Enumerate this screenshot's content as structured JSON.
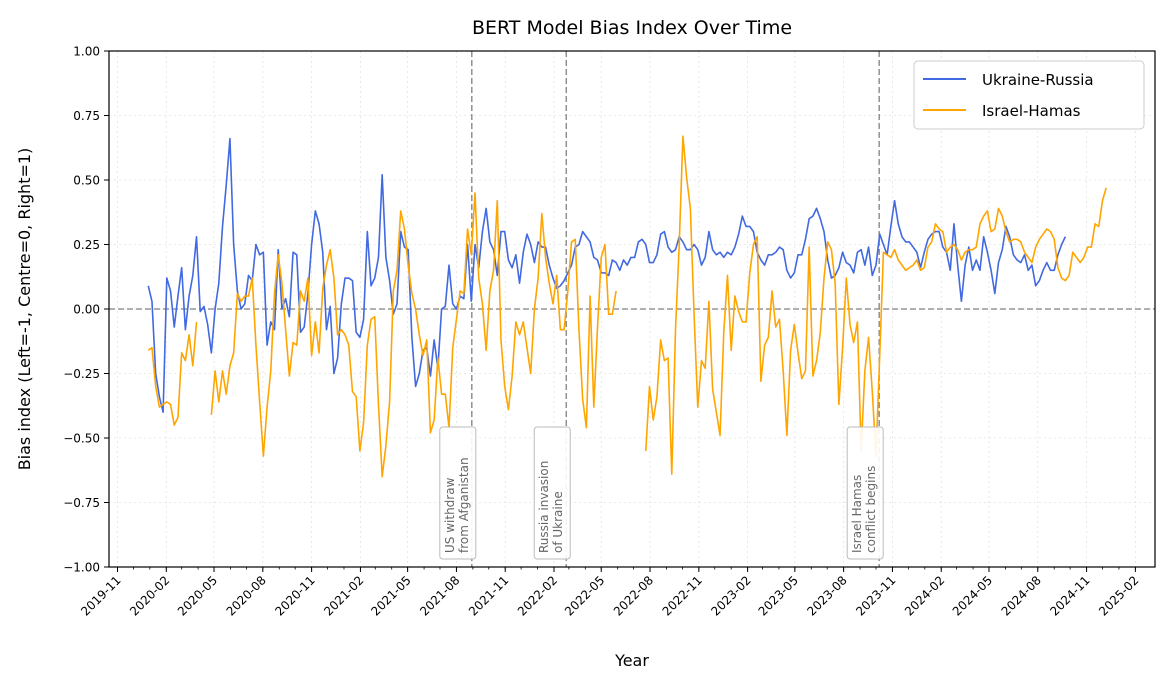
{
  "chart_data": {
    "type": "line",
    "title": "BERT Model Bias Index Over Time",
    "xlabel": "Year",
    "ylabel": "Bias index (Left=-1, Centre=0, Right=1)",
    "ylim": [
      -1.0,
      1.0
    ],
    "xlim": [
      "2019-10-16",
      "2025-03-10"
    ],
    "y_ticks": [
      -1.0,
      -0.75,
      -0.5,
      -0.25,
      0.0,
      0.25,
      0.5,
      0.75,
      1.0
    ],
    "y_tick_labels": [
      "−1.00",
      "−0.75",
      "−0.50",
      "−0.25",
      "0.00",
      "0.25",
      "0.50",
      "0.75",
      "1.00"
    ],
    "x_ticks": [
      "2019-11-01",
      "2020-02-01",
      "2020-05-01",
      "2020-08-01",
      "2020-11-01",
      "2021-02-01",
      "2021-05-01",
      "2021-08-01",
      "2021-11-01",
      "2022-02-01",
      "2022-05-01",
      "2022-08-01",
      "2022-11-01",
      "2023-02-01",
      "2023-05-01",
      "2023-08-01",
      "2023-11-01",
      "2024-02-01",
      "2024-05-01",
      "2024-08-01",
      "2024-11-01",
      "2025-02-01"
    ],
    "x_tick_labels": [
      "2019-11",
      "2020-02",
      "2020-05",
      "2020-08",
      "2020-11",
      "2021-02",
      "2021-05",
      "2021-08",
      "2021-11",
      "2022-02",
      "2022-05",
      "2022-08",
      "2022-11",
      "2023-02",
      "2023-05",
      "2023-08",
      "2023-11",
      "2024-02",
      "2024-05",
      "2024-08",
      "2024-11",
      "2025-02"
    ],
    "grid": true,
    "legend_position": "top-right",
    "reference_line_y": 0.0,
    "events": [
      {
        "date": "2021-08-30",
        "lines": [
          "US withdraw",
          "from Afganistan"
        ]
      },
      {
        "date": "2022-02-24",
        "lines": [
          "Russia invasion",
          "of Ukraine"
        ]
      },
      {
        "date": "2023-10-07",
        "lines": [
          "Israel Hamas",
          "conflict begins"
        ]
      }
    ],
    "series": [
      {
        "name": "Ukraine-Russia",
        "color": "#4169e1",
        "start": "2019-12-29",
        "interval_days": 7,
        "values": [
          0.09,
          0.03,
          -0.25,
          -0.34,
          -0.4,
          0.12,
          0.07,
          -0.07,
          0.05,
          0.16,
          -0.08,
          0.05,
          0.13,
          0.28,
          -0.01,
          0.01,
          -0.06,
          -0.17,
          0.0,
          0.1,
          0.32,
          0.48,
          0.66,
          0.25,
          0.07,
          0.0,
          0.02,
          0.13,
          0.11,
          0.25,
          0.21,
          0.22,
          -0.14,
          -0.05,
          -0.08,
          0.23,
          0.0,
          0.04,
          -0.03,
          0.22,
          0.21,
          -0.09,
          -0.07,
          0.06,
          0.25,
          0.38,
          0.33,
          0.22,
          -0.08,
          0.01,
          -0.25,
          -0.19,
          0.02,
          0.12,
          0.12,
          0.11,
          -0.09,
          -0.11,
          -0.04,
          0.3,
          0.09,
          0.12,
          0.2,
          0.52,
          0.2,
          0.11,
          -0.02,
          0.02,
          0.3,
          0.24,
          0.23,
          -0.11,
          -0.3,
          -0.25,
          -0.16,
          -0.15,
          -0.26,
          -0.12,
          -0.23,
          0.0,
          0.01,
          0.17,
          0.02,
          0.0,
          0.05,
          0.04,
          0.25,
          0.03,
          0.25,
          0.16,
          0.3,
          0.39,
          0.26,
          0.23,
          0.13,
          0.3,
          0.3,
          0.19,
          0.16,
          0.21,
          0.1,
          0.22,
          0.29,
          0.25,
          0.18,
          0.26,
          0.24,
          0.24,
          0.17,
          0.12,
          0.08,
          0.09,
          0.11,
          0.14,
          0.17,
          0.24,
          0.25,
          0.3,
          0.28,
          0.26,
          0.2,
          0.19,
          0.14,
          0.14,
          0.13,
          0.19,
          0.18,
          0.15,
          0.19,
          0.17,
          0.2,
          0.2,
          0.26,
          0.27,
          0.25,
          0.18,
          0.18,
          0.21,
          0.29,
          0.3,
          0.24,
          0.22,
          0.23,
          0.28,
          0.26,
          0.23,
          0.23,
          0.25,
          0.23,
          0.17,
          0.2,
          0.3,
          0.23,
          0.21,
          0.22,
          0.2,
          0.22,
          0.21,
          0.24,
          0.29,
          0.36,
          0.32,
          0.32,
          0.3,
          0.22,
          0.19,
          0.17,
          0.21,
          0.21,
          0.22,
          0.24,
          0.23,
          0.15,
          0.12,
          0.14,
          0.21,
          0.21,
          0.27,
          0.35,
          0.36,
          0.39,
          0.35,
          0.3,
          0.19,
          0.12,
          0.13,
          0.16,
          0.22,
          0.18,
          0.17,
          0.14,
          0.22,
          0.23,
          0.17,
          0.24,
          0.13,
          0.17,
          0.29,
          0.25,
          0.21,
          0.32,
          0.42,
          0.33,
          0.28,
          0.26,
          0.26,
          0.24,
          0.22,
          0.16,
          0.22,
          0.27,
          0.29,
          0.3,
          0.3,
          0.24,
          0.22,
          0.15,
          0.33,
          0.17,
          0.03,
          0.17,
          0.24,
          0.15,
          0.19,
          0.15,
          0.28,
          0.22,
          0.15,
          0.06,
          0.18,
          0.23,
          0.32,
          0.28,
          0.21,
          0.19,
          0.18,
          0.21,
          0.15,
          0.17,
          0.09,
          0.11,
          0.15,
          0.18,
          0.15,
          0.15,
          0.21,
          0.25,
          0.28
        ]
      },
      {
        "name": "Israel-Hamas",
        "color": "#ffa500",
        "start": "2019-12-29",
        "interval_days": 7,
        "values": [
          -0.16,
          -0.15,
          -0.3,
          -0.38,
          -0.37,
          -0.36,
          -0.37,
          -0.45,
          -0.42,
          -0.17,
          -0.2,
          -0.1,
          -0.22,
          -0.05,
          null,
          null,
          null,
          -0.41,
          -0.24,
          -0.36,
          -0.24,
          -0.33,
          -0.22,
          -0.17,
          0.06,
          0.03,
          0.05,
          0.05,
          0.12,
          -0.14,
          -0.36,
          -0.57,
          -0.38,
          -0.24,
          0.06,
          0.21,
          0.1,
          -0.08,
          -0.26,
          -0.13,
          -0.14,
          0.07,
          0.03,
          0.12,
          -0.18,
          -0.05,
          -0.17,
          0.08,
          0.17,
          0.23,
          0.12,
          -0.1,
          -0.08,
          -0.1,
          -0.14,
          -0.32,
          -0.34,
          -0.55,
          -0.44,
          -0.14,
          -0.04,
          -0.03,
          -0.37,
          -0.65,
          -0.53,
          -0.36,
          0.07,
          0.15,
          0.38,
          0.31,
          0.17,
          0.06,
          0.0,
          -0.1,
          -0.18,
          -0.12,
          -0.48,
          -0.43,
          -0.19,
          -0.33,
          -0.33,
          -0.46,
          -0.15,
          -0.04,
          0.07,
          0.06,
          0.31,
          0.21,
          0.45,
          0.12,
          0.02,
          -0.16,
          0.07,
          0.15,
          0.42,
          -0.12,
          -0.3,
          -0.39,
          -0.26,
          -0.05,
          -0.1,
          -0.05,
          -0.15,
          -0.25,
          0.0,
          0.12,
          0.37,
          0.2,
          0.1,
          0.02,
          0.13,
          -0.08,
          -0.08,
          0.07,
          0.26,
          0.27,
          -0.08,
          -0.35,
          -0.46,
          0.05,
          -0.38,
          -0.07,
          0.2,
          0.25,
          -0.02,
          -0.02,
          0.07,
          null,
          null,
          null,
          null,
          null,
          null,
          null,
          -0.55,
          -0.3,
          -0.43,
          -0.34,
          -0.12,
          -0.2,
          -0.19,
          -0.64,
          -0.08,
          0.25,
          0.67,
          0.51,
          0.39,
          -0.02,
          -0.38,
          -0.2,
          -0.23,
          0.03,
          -0.31,
          -0.4,
          -0.49,
          -0.09,
          0.13,
          -0.16,
          0.05,
          -0.01,
          -0.05,
          -0.05,
          0.14,
          0.25,
          0.28,
          -0.28,
          -0.14,
          -0.11,
          0.07,
          -0.07,
          -0.04,
          -0.24,
          -0.49,
          -0.16,
          -0.06,
          -0.17,
          -0.27,
          -0.24,
          0.24,
          -0.26,
          -0.2,
          -0.09,
          0.12,
          0.26,
          0.23,
          0.1,
          -0.37,
          -0.15,
          0.12,
          -0.06,
          -0.13,
          -0.05,
          -0.55,
          -0.24,
          -0.11,
          -0.32,
          -0.57,
          -0.18,
          0.22,
          0.21,
          0.2,
          0.23,
          0.19,
          0.17,
          0.15,
          0.16,
          0.17,
          0.19,
          0.15,
          0.16,
          0.24,
          0.26,
          0.33,
          0.31,
          0.3,
          0.22,
          0.24,
          0.25,
          0.23,
          0.19,
          0.22,
          0.23,
          0.23,
          0.24,
          0.33,
          0.36,
          0.38,
          0.3,
          0.31,
          0.39,
          0.36,
          0.3,
          0.26,
          0.27,
          0.27,
          0.26,
          0.22,
          0.2,
          0.18,
          0.24,
          0.27,
          0.29,
          0.31,
          0.3,
          0.27,
          0.16,
          0.12,
          0.11,
          0.13,
          0.22,
          0.2,
          0.18,
          0.2,
          0.24,
          0.24,
          0.33,
          0.32,
          0.42,
          0.47
        ]
      }
    ]
  }
}
